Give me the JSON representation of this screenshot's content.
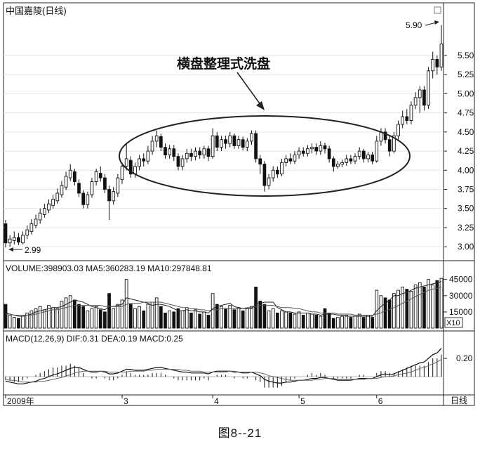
{
  "chart_data": {
    "type": "candlestick",
    "title": "中国嘉陵(日线)",
    "annotation": "横盘整理式洗盘",
    "high_label": "5.90",
    "low_label": "2.99",
    "price_ticks": [
      "5.50",
      "5.25",
      "5.00",
      "4.75",
      "4.50",
      "4.25",
      "4.00",
      "3.75",
      "3.50",
      "3.25",
      "3.00"
    ],
    "price_range": [
      2.9,
      5.95
    ],
    "volume_legend": "VOLUME:398903.03  MA5:360283.19  MA10:297848.81",
    "volume_ticks": [
      "45000",
      "30000",
      "15000"
    ],
    "volume_unit": "X10",
    "macd_legend": "MACD(12,26,9)  DIF:0.31  DEA:0.19  MACD:0.25",
    "macd_ticks": [
      "0.20"
    ],
    "x_labels": [
      "2009年",
      "3",
      "4",
      "5",
      "6"
    ],
    "period_label": "日线",
    "candles": [
      [
        3.3,
        3.05,
        3.35,
        2.99
      ],
      [
        3.05,
        3.1,
        3.15,
        3.0
      ],
      [
        3.08,
        3.12,
        3.2,
        3.03
      ],
      [
        3.12,
        3.06,
        3.18,
        3.02
      ],
      [
        3.05,
        3.15,
        3.2,
        3.03
      ],
      [
        3.15,
        3.22,
        3.28,
        3.1
      ],
      [
        3.2,
        3.3,
        3.36,
        3.16
      ],
      [
        3.28,
        3.36,
        3.42,
        3.24
      ],
      [
        3.35,
        3.44,
        3.5,
        3.3
      ],
      [
        3.42,
        3.5,
        3.56,
        3.38
      ],
      [
        3.48,
        3.56,
        3.62,
        3.44
      ],
      [
        3.54,
        3.62,
        3.68,
        3.5
      ],
      [
        3.6,
        3.7,
        3.76,
        3.56
      ],
      [
        3.68,
        3.8,
        3.86,
        3.64
      ],
      [
        3.78,
        3.92,
        3.98,
        3.74
      ],
      [
        3.9,
        4.0,
        4.08,
        3.86
      ],
      [
        3.98,
        3.85,
        4.02,
        3.8
      ],
      [
        3.83,
        3.7,
        3.88,
        3.65
      ],
      [
        3.7,
        3.55,
        3.74,
        3.5
      ],
      [
        3.55,
        3.68,
        3.72,
        3.5
      ],
      [
        3.68,
        3.85,
        3.9,
        3.64
      ],
      [
        3.85,
        3.98,
        4.02,
        3.8
      ],
      [
        3.96,
        3.9,
        4.05,
        3.85
      ],
      [
        3.9,
        3.75,
        3.95,
        3.7
      ],
      [
        3.75,
        3.6,
        3.8,
        3.35
      ],
      [
        3.6,
        3.72,
        3.78,
        3.55
      ],
      [
        3.7,
        3.9,
        3.95,
        3.65
      ],
      [
        3.88,
        4.05,
        4.1,
        3.82
      ],
      [
        4.05,
        4.15,
        4.35,
        4.0
      ],
      [
        4.13,
        3.95,
        4.18,
        3.9
      ],
      [
        3.95,
        4.05,
        4.1,
        3.9
      ],
      [
        4.05,
        4.15,
        4.2,
        4.0
      ],
      [
        4.15,
        4.12,
        4.22,
        4.05
      ],
      [
        4.12,
        4.25,
        4.32,
        4.08
      ],
      [
        4.25,
        4.38,
        4.45,
        4.2
      ],
      [
        4.38,
        4.45,
        4.52,
        4.3
      ],
      [
        4.44,
        4.3,
        4.48,
        4.25
      ],
      [
        4.3,
        4.2,
        4.35,
        4.15
      ],
      [
        4.2,
        4.28,
        4.33,
        4.15
      ],
      [
        4.28,
        4.18,
        4.33,
        4.12
      ],
      [
        4.18,
        4.05,
        4.22,
        4.0
      ],
      [
        4.05,
        4.15,
        4.2,
        4.0
      ],
      [
        4.15,
        4.22,
        4.28,
        4.1
      ],
      [
        4.22,
        4.18,
        4.28,
        4.12
      ],
      [
        4.18,
        4.25,
        4.3,
        4.13
      ],
      [
        4.25,
        4.2,
        4.3,
        4.15
      ],
      [
        4.2,
        4.28,
        4.32,
        4.15
      ],
      [
        4.28,
        4.18,
        4.32,
        4.12
      ],
      [
        4.18,
        4.45,
        4.55,
        4.15
      ],
      [
        4.45,
        4.3,
        4.5,
        4.25
      ],
      [
        4.3,
        4.4,
        4.45,
        4.25
      ],
      [
        4.4,
        4.35,
        4.45,
        4.28
      ],
      [
        4.35,
        4.45,
        4.5,
        4.3
      ],
      [
        4.45,
        4.32,
        4.48,
        4.28
      ],
      [
        4.32,
        4.4,
        4.45,
        4.28
      ],
      [
        4.4,
        4.3,
        4.44,
        4.26
      ],
      [
        4.3,
        4.38,
        4.42,
        4.25
      ],
      [
        4.38,
        4.48,
        4.52,
        4.33
      ],
      [
        4.48,
        4.15,
        4.52,
        4.1
      ],
      [
        4.15,
        4.08,
        4.2,
        3.95
      ],
      [
        4.08,
        3.8,
        4.12,
        3.72
      ],
      [
        3.8,
        3.9,
        3.95,
        3.75
      ],
      [
        3.9,
        4.0,
        4.05,
        3.85
      ],
      [
        4.0,
        3.95,
        4.05,
        3.9
      ],
      [
        3.95,
        4.1,
        4.15,
        3.92
      ],
      [
        4.1,
        4.15,
        4.2,
        4.05
      ],
      [
        4.15,
        4.12,
        4.22,
        4.08
      ],
      [
        4.12,
        4.2,
        4.25,
        4.08
      ],
      [
        4.2,
        4.25,
        4.3,
        4.15
      ],
      [
        4.25,
        4.22,
        4.3,
        4.18
      ],
      [
        4.22,
        4.28,
        4.33,
        4.18
      ],
      [
        4.28,
        4.3,
        4.35,
        4.22
      ],
      [
        4.3,
        4.25,
        4.35,
        4.2
      ],
      [
        4.25,
        4.32,
        4.38,
        4.2
      ],
      [
        4.32,
        4.28,
        4.36,
        4.22
      ],
      [
        4.28,
        4.15,
        4.32,
        4.1
      ],
      [
        4.15,
        4.05,
        4.18,
        3.98
      ],
      [
        4.05,
        4.08,
        4.12,
        4.02
      ],
      [
        4.08,
        4.1,
        4.14,
        4.04
      ],
      [
        4.1,
        4.15,
        4.2,
        4.06
      ],
      [
        4.15,
        4.12,
        4.2,
        4.08
      ],
      [
        4.12,
        4.18,
        4.22,
        4.08
      ],
      [
        4.18,
        4.25,
        4.3,
        4.14
      ],
      [
        4.25,
        4.15,
        4.28,
        4.1
      ],
      [
        4.15,
        4.2,
        4.24,
        4.1
      ],
      [
        4.2,
        4.12,
        4.24,
        4.08
      ],
      [
        4.12,
        4.38,
        4.45,
        4.1
      ],
      [
        4.38,
        4.5,
        4.55,
        4.32
      ],
      [
        4.5,
        4.4,
        4.55,
        4.35
      ],
      [
        4.4,
        4.25,
        4.45,
        4.18
      ],
      [
        4.25,
        4.45,
        4.5,
        4.22
      ],
      [
        4.45,
        4.6,
        4.65,
        4.4
      ],
      [
        4.6,
        4.7,
        4.78,
        4.55
      ],
      [
        4.7,
        4.65,
        4.8,
        4.6
      ],
      [
        4.65,
        4.85,
        4.9,
        4.6
      ],
      [
        4.85,
        4.95,
        5.02,
        4.8
      ],
      [
        4.95,
        5.05,
        5.1,
        4.75
      ],
      [
        5.05,
        4.85,
        5.1,
        4.78
      ],
      [
        4.85,
        5.3,
        5.35,
        4.8
      ],
      [
        5.3,
        5.45,
        5.55,
        5.2
      ],
      [
        5.45,
        5.35,
        5.5,
        5.25
      ],
      [
        5.35,
        5.65,
        5.9,
        5.3
      ]
    ],
    "volume": [
      22,
      12,
      10,
      9,
      11,
      14,
      16,
      18,
      20,
      17,
      21,
      19,
      18,
      25,
      28,
      30,
      26,
      22,
      20,
      16,
      18,
      20,
      17,
      15,
      32,
      18,
      22,
      26,
      45,
      22,
      18,
      20,
      16,
      22,
      24,
      28,
      20,
      14,
      16,
      15,
      18,
      16,
      19,
      14,
      17,
      13,
      15,
      12,
      32,
      22,
      20,
      18,
      21,
      17,
      19,
      16,
      18,
      20,
      38,
      25,
      22,
      16,
      18,
      14,
      16,
      15,
      14,
      13,
      15,
      12,
      14,
      13,
      12,
      11,
      18,
      14,
      9,
      10,
      11,
      12,
      10,
      11,
      13,
      10,
      12,
      10,
      35,
      30,
      28,
      26,
      32,
      35,
      38,
      36,
      34,
      40,
      42,
      38,
      45,
      40,
      44,
      46
    ],
    "ma5": [
      14,
      13,
      12,
      11,
      11,
      12,
      13,
      15,
      16,
      17,
      18,
      19,
      19,
      20,
      22,
      24,
      26,
      25,
      24,
      22,
      20,
      19,
      18,
      17,
      20,
      20,
      21,
      22,
      28,
      27,
      26,
      25,
      24,
      23,
      21,
      22,
      22,
      21,
      20,
      18,
      16,
      16,
      17,
      16,
      16,
      15,
      15,
      14,
      18,
      20,
      21,
      22,
      23,
      20,
      19,
      18,
      18,
      18,
      22,
      23,
      24,
      24,
      24,
      19,
      17,
      15,
      15,
      14,
      14,
      14,
      14,
      13,
      13,
      12,
      13,
      13,
      13,
      12,
      12,
      11,
      11,
      11,
      11,
      11,
      11,
      11,
      16,
      20,
      23,
      26,
      30,
      30,
      32,
      33,
      35,
      37,
      38,
      39,
      40,
      41,
      42,
      43
    ],
    "ma10": [
      13,
      13,
      12,
      12,
      12,
      12,
      12,
      13,
      14,
      15,
      16,
      17,
      17,
      18,
      19,
      20,
      21,
      21,
      21,
      21,
      21,
      21,
      21,
      20,
      20,
      20,
      20,
      20,
      22,
      23,
      23,
      23,
      24,
      24,
      24,
      24,
      24,
      23,
      22,
      21,
      20,
      19,
      19,
      18,
      18,
      17,
      17,
      16,
      17,
      17,
      18,
      18,
      18,
      18,
      18,
      18,
      19,
      19,
      20,
      21,
      21,
      21,
      21,
      20,
      19,
      19,
      19,
      18,
      18,
      17,
      16,
      15,
      15,
      14,
      14,
      14,
      14,
      13,
      13,
      13,
      13,
      12,
      12,
      12,
      12,
      12,
      13,
      14,
      16,
      17,
      19,
      21,
      23,
      25,
      27,
      29,
      31,
      33,
      35,
      36,
      37,
      38
    ],
    "dif": [
      -0.05,
      -0.06,
      -0.07,
      -0.08,
      -0.08,
      -0.07,
      -0.06,
      -0.05,
      -0.03,
      -0.02,
      0.0,
      0.02,
      0.03,
      0.05,
      0.07,
      0.09,
      0.1,
      0.1,
      0.08,
      0.06,
      0.05,
      0.05,
      0.06,
      0.05,
      0.03,
      0.03,
      0.04,
      0.06,
      0.08,
      0.08,
      0.07,
      0.07,
      0.07,
      0.08,
      0.09,
      0.1,
      0.1,
      0.09,
      0.08,
      0.07,
      0.06,
      0.05,
      0.05,
      0.04,
      0.04,
      0.04,
      0.04,
      0.03,
      0.05,
      0.06,
      0.06,
      0.06,
      0.06,
      0.05,
      0.05,
      0.04,
      0.04,
      0.05,
      0.03,
      0.01,
      -0.03,
      -0.05,
      -0.06,
      -0.07,
      -0.07,
      -0.06,
      -0.06,
      -0.05,
      -0.04,
      -0.04,
      -0.03,
      -0.02,
      -0.02,
      -0.01,
      -0.01,
      -0.02,
      -0.03,
      -0.04,
      -0.04,
      -0.04,
      -0.04,
      -0.03,
      -0.02,
      -0.02,
      -0.02,
      -0.02,
      0.0,
      0.02,
      0.03,
      0.02,
      0.03,
      0.05,
      0.07,
      0.09,
      0.11,
      0.13,
      0.15,
      0.16,
      0.2,
      0.24,
      0.26,
      0.31
    ],
    "dea": [
      -0.03,
      -0.04,
      -0.04,
      -0.05,
      -0.06,
      -0.06,
      -0.06,
      -0.06,
      -0.05,
      -0.05,
      -0.04,
      -0.03,
      -0.02,
      -0.01,
      0.01,
      0.02,
      0.04,
      0.05,
      0.06,
      0.06,
      0.06,
      0.06,
      0.06,
      0.06,
      0.05,
      0.05,
      0.05,
      0.05,
      0.05,
      0.06,
      0.06,
      0.06,
      0.06,
      0.07,
      0.07,
      0.08,
      0.08,
      0.08,
      0.08,
      0.08,
      0.08,
      0.07,
      0.07,
      0.06,
      0.06,
      0.06,
      0.05,
      0.05,
      0.05,
      0.05,
      0.05,
      0.05,
      0.06,
      0.06,
      0.05,
      0.05,
      0.05,
      0.05,
      0.05,
      0.04,
      0.03,
      0.01,
      0.0,
      -0.01,
      -0.02,
      -0.03,
      -0.04,
      -0.04,
      -0.04,
      -0.04,
      -0.04,
      -0.04,
      -0.03,
      -0.03,
      -0.02,
      -0.02,
      -0.02,
      -0.03,
      -0.03,
      -0.03,
      -0.03,
      -0.03,
      -0.03,
      -0.03,
      -0.02,
      -0.02,
      -0.02,
      -0.01,
      0.0,
      0.0,
      0.01,
      0.02,
      0.03,
      0.04,
      0.05,
      0.07,
      0.09,
      0.1,
      0.12,
      0.14,
      0.16,
      0.19
    ]
  },
  "caption": "图8--21"
}
